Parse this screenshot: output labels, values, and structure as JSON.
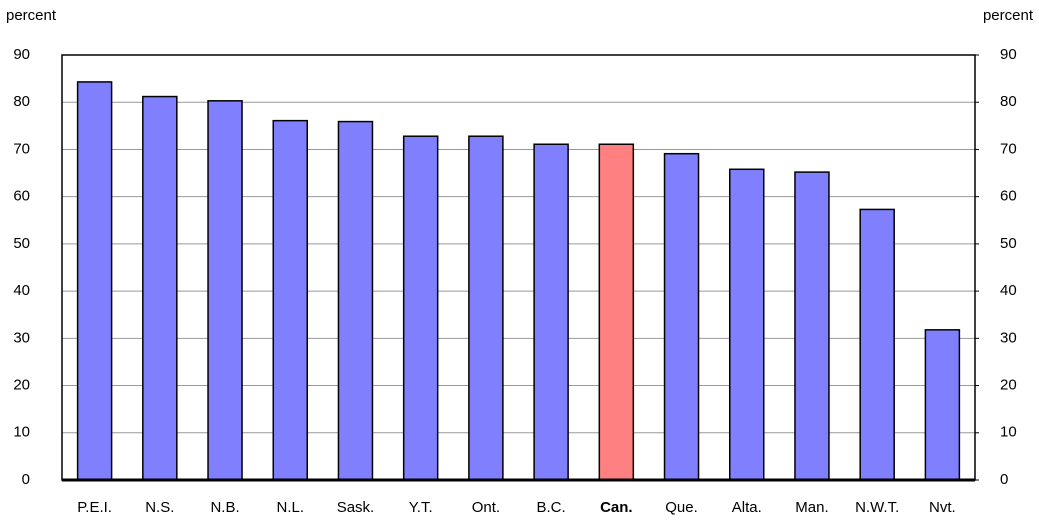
{
  "chart_data": {
    "type": "bar",
    "ylabel": "percent",
    "y2label": "percent",
    "categories": [
      "P.E.I.",
      "N.S.",
      "N.B.",
      "N.L.",
      "Sask.",
      "Y.T.",
      "Ont.",
      "B.C.",
      "Can.",
      "Que.",
      "Alta.",
      "Man.",
      "N.W.T.",
      "Nvt."
    ],
    "values": [
      84.3,
      81.2,
      80.3,
      76.1,
      75.9,
      72.8,
      72.8,
      71.1,
      71.1,
      69.1,
      65.8,
      65.2,
      57.3,
      31.8
    ],
    "colors": [
      "#8080ff",
      "#8080ff",
      "#8080ff",
      "#8080ff",
      "#8080ff",
      "#8080ff",
      "#8080ff",
      "#8080ff",
      "#ff8080",
      "#8080ff",
      "#8080ff",
      "#8080ff",
      "#8080ff",
      "#8080ff"
    ],
    "label_bold": [
      false,
      false,
      false,
      false,
      false,
      false,
      false,
      false,
      true,
      false,
      false,
      false,
      false,
      false
    ],
    "ylim": [
      0,
      90
    ],
    "yticks": [
      0,
      10,
      20,
      30,
      40,
      50,
      60,
      70,
      80,
      90
    ],
    "y2lim": [
      0,
      90
    ],
    "y2ticks": [
      0,
      10,
      20,
      30,
      40,
      50,
      60,
      70,
      80,
      90
    ],
    "grid": true
  }
}
